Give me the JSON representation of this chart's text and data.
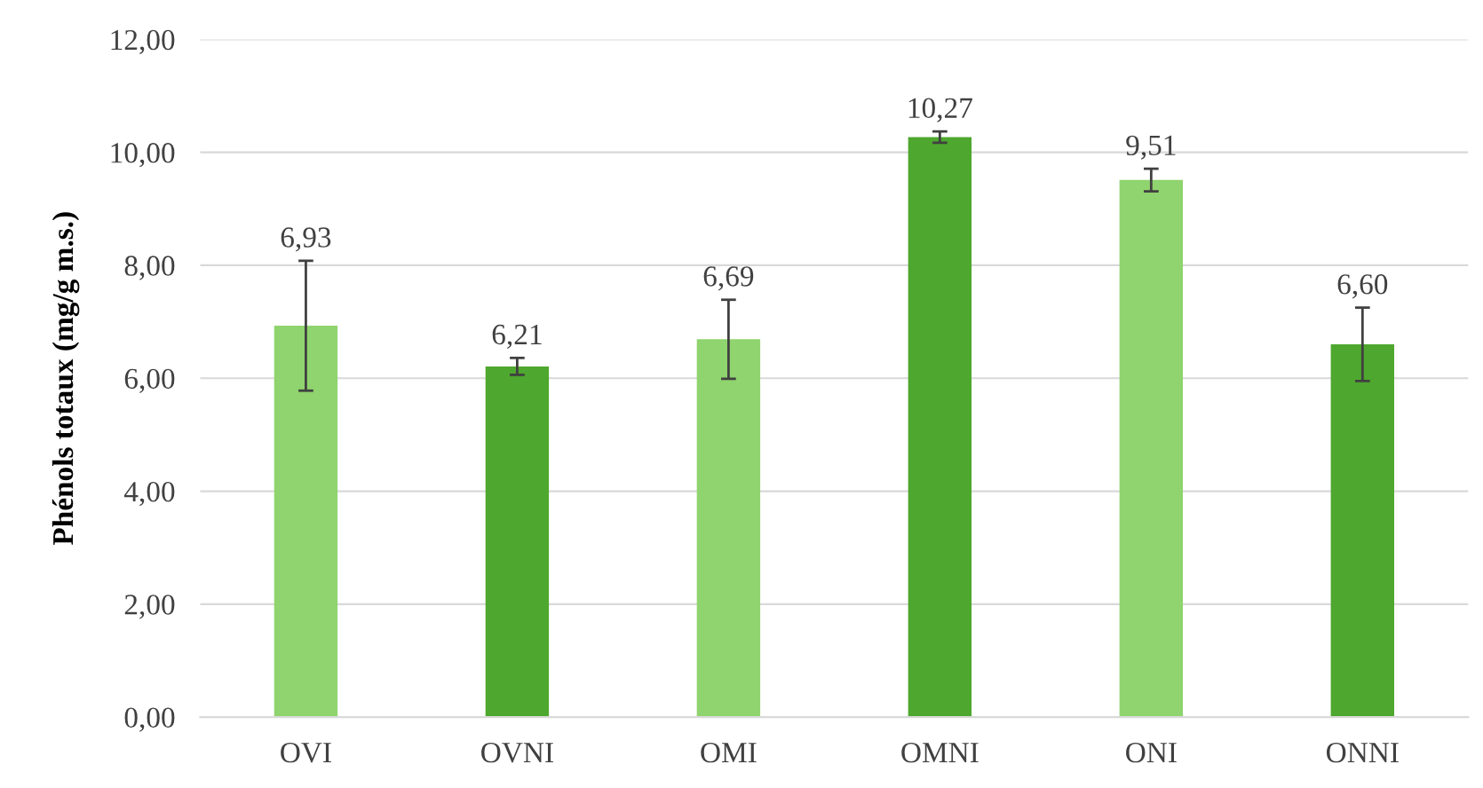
{
  "chart_data": {
    "type": "bar",
    "ylabel": "Phénols totaux (mg/g m.s.)",
    "categories": [
      "OVI",
      "OVNI",
      "OMI",
      "OMNI",
      "ONI",
      "ONNI"
    ],
    "values": [
      6.93,
      6.21,
      6.69,
      10.27,
      9.51,
      6.6
    ],
    "colors": [
      "#8fd46e",
      "#4ea72e",
      "#8fd46e",
      "#4ea72e",
      "#8fd46e",
      "#4ea72e"
    ],
    "errors": [
      1.15,
      0.15,
      0.7,
      0.1,
      0.2,
      0.65
    ],
    "value_labels": [
      "6,93",
      "6,21",
      "6,69",
      "10,27",
      "9,51",
      "6,60"
    ],
    "ylim": [
      0,
      12
    ],
    "yticks": [
      {
        "value": 0,
        "label": "0,00"
      },
      {
        "value": 2,
        "label": "2,00"
      },
      {
        "value": 4,
        "label": "4,00"
      },
      {
        "value": 6,
        "label": "6,00"
      },
      {
        "value": 8,
        "label": "8,00"
      },
      {
        "value": 10,
        "label": "10,00"
      },
      {
        "value": 12,
        "label": "12,00"
      }
    ],
    "grid": "y",
    "legend": false
  }
}
